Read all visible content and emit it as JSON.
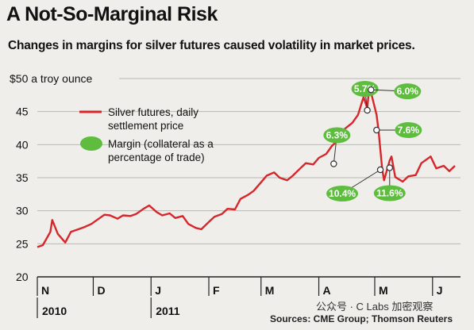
{
  "chart_data": {
    "type": "line",
    "title": "A Not-So-Marginal Risk",
    "subtitle": "Changes in margins for silver futures caused volatility in market prices.",
    "ylabel": "$50 a troy ounce",
    "ylim": [
      20,
      50
    ],
    "yticks": [
      20,
      25,
      30,
      35,
      40,
      45
    ],
    "grid": true,
    "months": [
      "N",
      "D",
      "J",
      "F",
      "M",
      "A",
      "M",
      "J"
    ],
    "years": [
      "2010",
      "2011"
    ],
    "legend": {
      "line_label": [
        "Silver futures, daily",
        "settlement price"
      ],
      "marker_label": [
        "Margin (collateral as a",
        "percentage of trade)"
      ]
    },
    "series": [
      {
        "name": "Silver futures, daily settlement price",
        "color": "#d7262b",
        "points": [
          [
            "2010-11-01",
            24.5
          ],
          [
            "2010-11-04",
            24.8
          ],
          [
            "2010-11-08",
            26.8
          ],
          [
            "2010-11-09",
            28.6
          ],
          [
            "2010-11-12",
            26.5
          ],
          [
            "2010-11-16",
            25.2
          ],
          [
            "2010-11-19",
            26.8
          ],
          [
            "2010-11-23",
            27.2
          ],
          [
            "2010-11-26",
            27.5
          ],
          [
            "2010-11-30",
            28.0
          ],
          [
            "2010-12-03",
            28.6
          ],
          [
            "2010-12-07",
            29.4
          ],
          [
            "2010-12-10",
            29.3
          ],
          [
            "2010-12-14",
            28.8
          ],
          [
            "2010-12-17",
            29.3
          ],
          [
            "2010-12-21",
            29.2
          ],
          [
            "2010-12-24",
            29.5
          ],
          [
            "2010-12-28",
            30.3
          ],
          [
            "2010-12-31",
            30.8
          ],
          [
            "2011-01-04",
            29.8
          ],
          [
            "2011-01-07",
            29.3
          ],
          [
            "2011-01-11",
            29.6
          ],
          [
            "2011-01-14",
            28.9
          ],
          [
            "2011-01-18",
            29.2
          ],
          [
            "2011-01-21",
            28.0
          ],
          [
            "2011-01-25",
            27.4
          ],
          [
            "2011-01-28",
            27.2
          ],
          [
            "2011-02-01",
            28.3
          ],
          [
            "2011-02-04",
            29.1
          ],
          [
            "2011-02-08",
            29.5
          ],
          [
            "2011-02-11",
            30.3
          ],
          [
            "2011-02-15",
            30.2
          ],
          [
            "2011-02-18",
            31.8
          ],
          [
            "2011-02-22",
            32.4
          ],
          [
            "2011-02-25",
            33.0
          ],
          [
            "2011-03-01",
            34.3
          ],
          [
            "2011-03-04",
            35.3
          ],
          [
            "2011-03-08",
            35.8
          ],
          [
            "2011-03-11",
            35.0
          ],
          [
            "2011-03-15",
            34.6
          ],
          [
            "2011-03-18",
            35.3
          ],
          [
            "2011-03-22",
            36.4
          ],
          [
            "2011-03-25",
            37.2
          ],
          [
            "2011-03-29",
            37.0
          ],
          [
            "2011-04-01",
            38.0
          ],
          [
            "2011-04-05",
            38.6
          ],
          [
            "2011-04-08",
            39.8
          ],
          [
            "2011-04-12",
            40.9
          ],
          [
            "2011-04-15",
            42.4
          ],
          [
            "2011-04-19",
            43.3
          ],
          [
            "2011-04-22",
            44.5
          ],
          [
            "2011-04-25",
            47.2
          ],
          [
            "2011-04-27",
            45.5
          ],
          [
            "2011-04-28",
            48.6
          ],
          [
            "2011-04-29",
            47.9
          ],
          [
            "2011-05-02",
            44.5
          ],
          [
            "2011-05-03",
            42.2
          ],
          [
            "2011-05-05",
            36.3
          ],
          [
            "2011-05-06",
            34.6
          ],
          [
            "2011-05-09",
            37.6
          ],
          [
            "2011-05-10",
            38.2
          ],
          [
            "2011-05-12",
            35.1
          ],
          [
            "2011-05-16",
            34.4
          ],
          [
            "2011-05-19",
            35.2
          ],
          [
            "2011-05-23",
            35.4
          ],
          [
            "2011-05-26",
            37.2
          ],
          [
            "2011-05-31",
            38.2
          ],
          [
            "2011-06-03",
            36.4
          ],
          [
            "2011-06-07",
            36.8
          ],
          [
            "2011-06-10",
            36.0
          ],
          [
            "2011-06-13",
            36.8
          ]
        ]
      }
    ],
    "annotations": [
      {
        "label": "6.3%",
        "date": "2011-04-09",
        "value": 37.1
      },
      {
        "label": "5.7%",
        "date": "2011-04-27",
        "value": 45.2
      },
      {
        "label": "6.0%",
        "date": "2011-04-29",
        "value": 48.3
      },
      {
        "label": "7.6%",
        "date": "2011-05-02",
        "value": 42.2
      },
      {
        "label": "10.4%",
        "date": "2011-05-04",
        "value": 36.2
      },
      {
        "label": "11.6%",
        "date": "2011-05-09",
        "value": 36.5
      }
    ],
    "legend_position": "top-left"
  },
  "colors": {
    "line": "#d7262b",
    "margin_fill": "#5ebd3e",
    "background": "#efeeea",
    "grid": "#b9b9b4"
  },
  "watermark": "公众号 · C Labs 加密观察",
  "source": "Sources: CME Group; Thomson Reuters"
}
